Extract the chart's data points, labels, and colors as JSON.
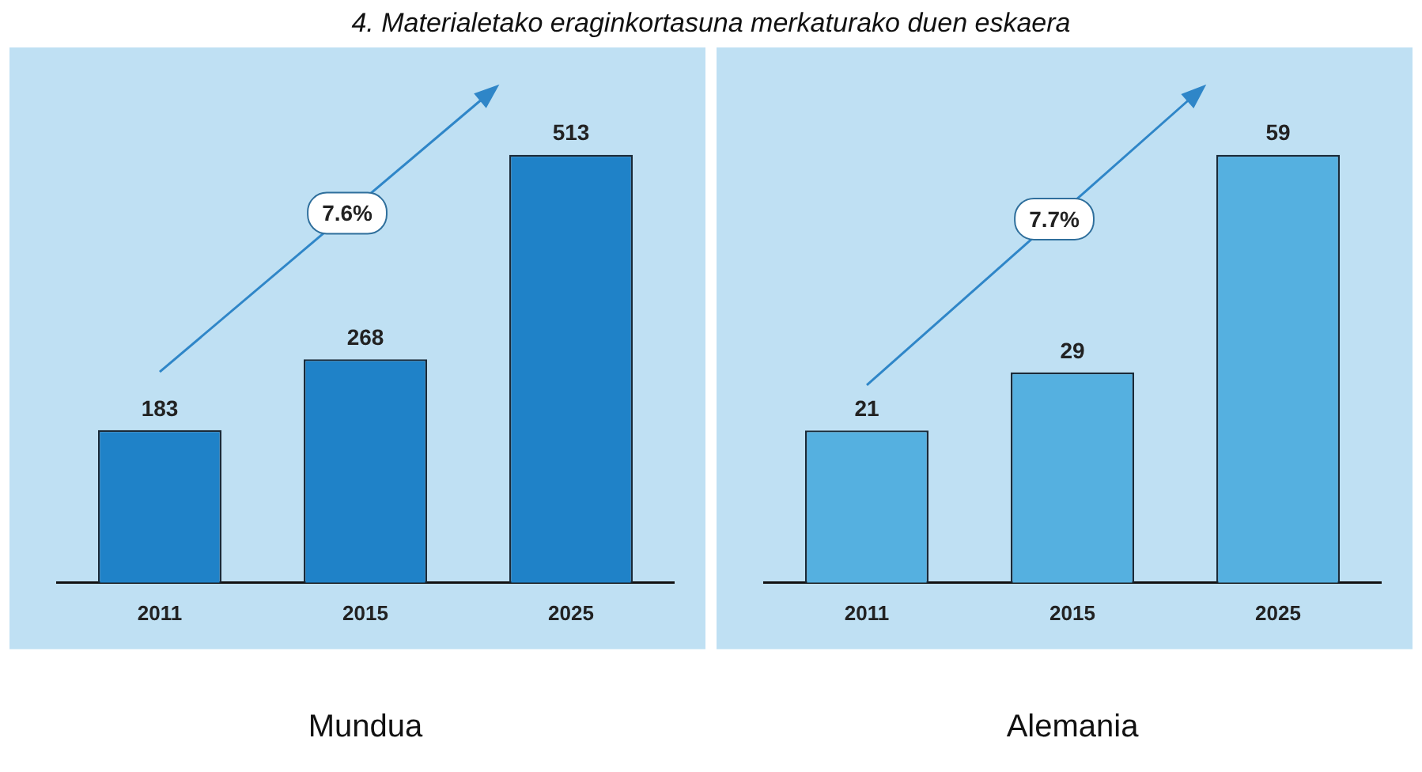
{
  "chart_data": [
    {
      "type": "bar",
      "title": "4. Materialetako eraginkortasuna merkaturako duen eskaera",
      "categories": [
        "2011",
        "2015",
        "2025"
      ],
      "values": [
        183,
        268,
        513
      ],
      "color": "#1f82c8",
      "data_labels": true,
      "xlabel": "Mundua",
      "annotations": [
        "7.6%"
      ]
    },
    {
      "type": "bar",
      "categories": [
        "2011",
        "2015",
        "2025"
      ],
      "values": [
        21,
        29,
        59
      ],
      "color": "#55b0e0",
      "data_labels": true,
      "xlabel": "Alemania",
      "annotations": [
        "7.7%"
      ]
    }
  ]
}
